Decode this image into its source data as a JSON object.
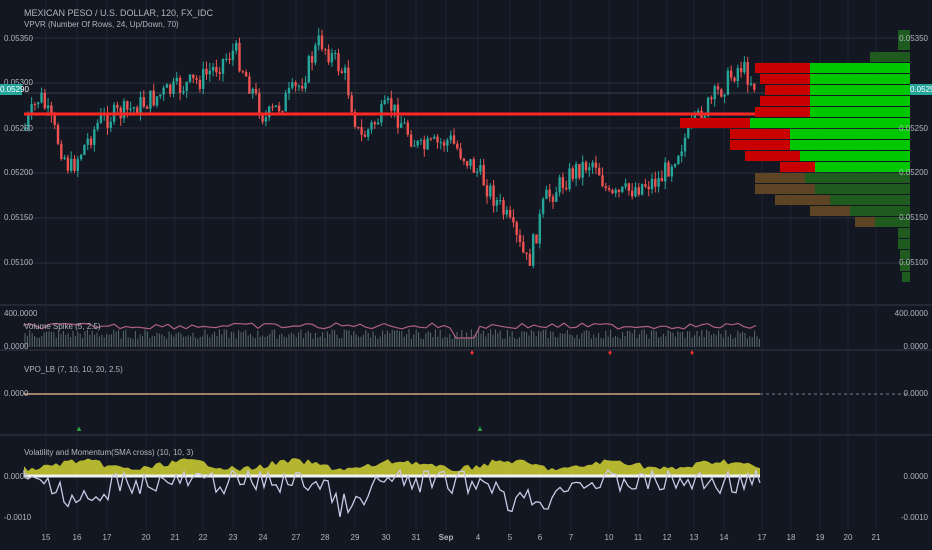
{
  "main": {
    "title": "MEXICAN PESO / U.S. DOLLAR, 120, FX_IDC",
    "indicator": "VPVR (Number Of Rows, 24, Up/Down, 70)",
    "y_ticks": [
      "0.05350",
      "0.05300",
      "0.05250",
      "0.05200",
      "0.05150",
      "0.05100"
    ],
    "current_price": "0.05290",
    "colors": {
      "up": "#26a69a",
      "down": "#ef5350",
      "hline": "#ff2626",
      "vp_up": "#00c800",
      "vp_down": "#c80000"
    }
  },
  "pane1": {
    "title": "Volume Spike (5, 2.5)",
    "y_top": "400.0000",
    "y_bottom": "0.0000",
    "y_top_r": "400.0000",
    "y_bottom_r": "0.0000"
  },
  "pane2": {
    "title": "VPO_LB (7, 10, 10, 20, 2.5)",
    "y_mid": "0.0000",
    "y_mid_r": "0.0000"
  },
  "pane3": {
    "title": "Volatility and Momentum(SMA cross) (10, 10, 3)",
    "y_top": "0.0000",
    "y_bottom": "-0.0010",
    "y_top_r": "0.0000",
    "y_bottom_r": "-0.0010"
  },
  "x_axis": {
    "ticks": [
      "15",
      "16",
      "17",
      "20",
      "21",
      "22",
      "23",
      "24",
      "27",
      "28",
      "29",
      "30",
      "31",
      "Sep",
      "4",
      "5",
      "6",
      "7",
      "10",
      "11",
      "12",
      "13",
      "14",
      "17",
      "18",
      "19",
      "20",
      "21"
    ]
  }
}
